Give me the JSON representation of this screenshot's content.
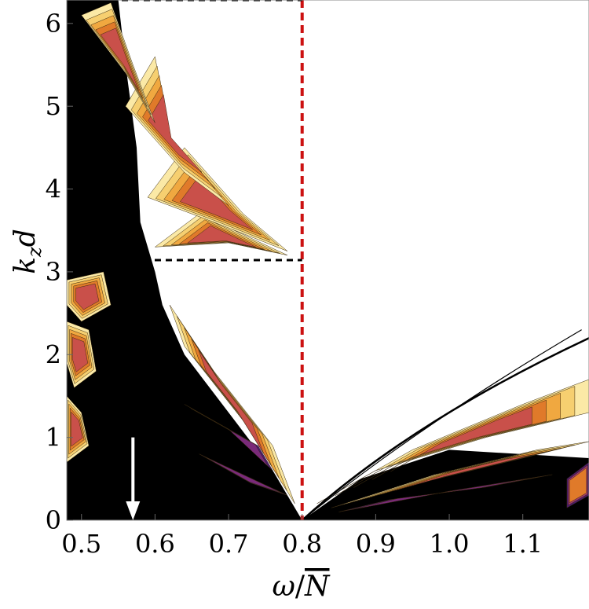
{
  "chart_data": {
    "type": "contour",
    "xlabel": {
      "var": "ω",
      "slash": "/",
      "den": "N"
    },
    "ylabel": {
      "var": "k",
      "sub": "z",
      "tail": "d"
    },
    "xlim": [
      0.48,
      1.19
    ],
    "ylim": [
      0,
      6.283
    ],
    "xticks": [
      {
        "value": 0.5,
        "label": "0.5"
      },
      {
        "value": 0.6,
        "label": "0.6"
      },
      {
        "value": 0.7,
        "label": "0.7"
      },
      {
        "value": 0.8,
        "label": "0.8"
      },
      {
        "value": 0.9,
        "label": "0.9"
      },
      {
        "value": 1.0,
        "label": "1.0"
      },
      {
        "value": 1.1,
        "label": "1.1"
      }
    ],
    "yticks": [
      {
        "value": 0,
        "label": "0"
      },
      {
        "value": 1,
        "label": "1"
      },
      {
        "value": 2,
        "label": "2"
      },
      {
        "value": 3,
        "label": "3"
      },
      {
        "value": 4,
        "label": "4"
      },
      {
        "value": 5,
        "label": "5"
      },
      {
        "value": 6,
        "label": "6"
      }
    ],
    "reference_lines": [
      {
        "orientation": "vertical",
        "value": 0.8,
        "style": "dashed",
        "color": "#cc1111"
      },
      {
        "orientation": "horizontal",
        "value": 3.1416,
        "x_range": [
          0.48,
          0.8
        ],
        "style": "dashed",
        "color": "#000000"
      },
      {
        "orientation": "horizontal",
        "value": 6.2832,
        "x_range": [
          0.48,
          0.8
        ],
        "style": "dashed",
        "color": "#000000"
      }
    ],
    "arrow": {
      "x": 0.57,
      "y_from": 1.0,
      "y_to": 0.0,
      "color": "#ffffff"
    },
    "colormap": [
      "#000000",
      "#4a1a6e",
      "#7a2a7a",
      "#a23a6a",
      "#c9504a",
      "#e07a2a",
      "#f0a840",
      "#f6cf70",
      "#fbe9a6",
      "#ffffff"
    ],
    "grid": false
  }
}
